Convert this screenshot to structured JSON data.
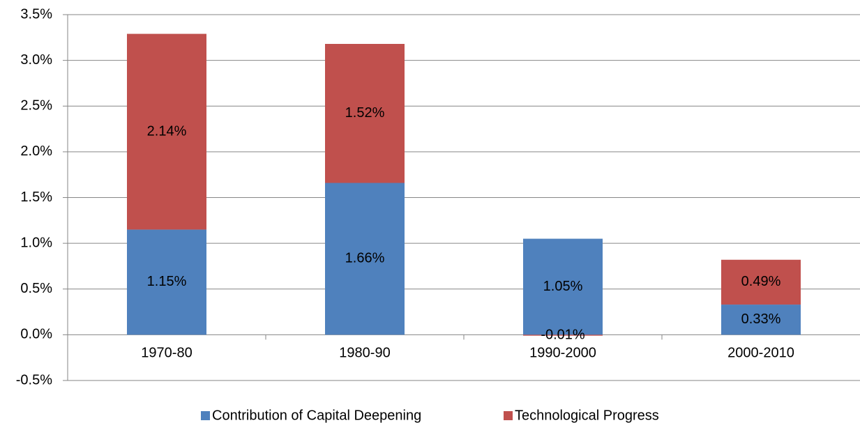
{
  "chart_data": {
    "type": "stacked-bar",
    "categories": [
      "1970-80",
      "1980-90",
      "1990-2000",
      "2000-2010"
    ],
    "series": [
      {
        "name": "Contribution of Capital Deepening",
        "color": "#4f81bd",
        "values": [
          1.15,
          1.66,
          1.05,
          0.33
        ],
        "value_labels": [
          "1.15%",
          "1.66%",
          "1.05%",
          "0.33%"
        ]
      },
      {
        "name": "Technological Progress",
        "color": "#c0504d",
        "values": [
          2.14,
          1.52,
          -0.01,
          0.49
        ],
        "value_labels": [
          "2.14%",
          "1.52%",
          "-0.01%",
          "0.49%"
        ]
      }
    ],
    "ylim": [
      -0.5,
      3.5
    ],
    "yticks": [
      {
        "value": -0.5,
        "label": "-0.5%"
      },
      {
        "value": 0,
        "label": "0.0%"
      },
      {
        "value": 0.5,
        "label": "0.5%"
      },
      {
        "value": 1,
        "label": "1.0%"
      },
      {
        "value": 1.5,
        "label": "1.5%"
      },
      {
        "value": 2,
        "label": "2.0%"
      },
      {
        "value": 2.5,
        "label": "2.5%"
      },
      {
        "value": 3,
        "label": "3.0%"
      },
      {
        "value": 3.5,
        "label": "3.5%"
      }
    ],
    "grid": true,
    "legend": "bottom"
  }
}
